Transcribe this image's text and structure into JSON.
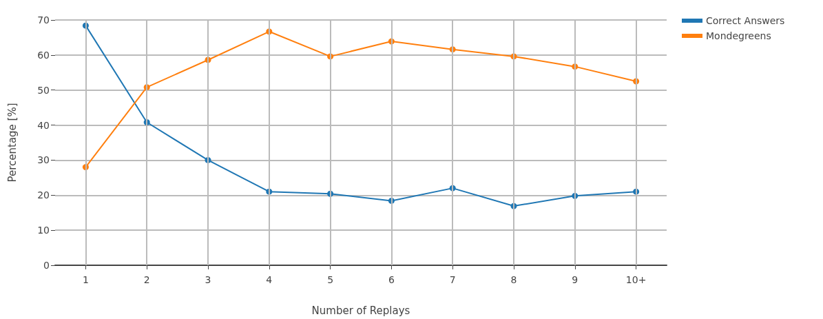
{
  "chart_data": {
    "type": "line",
    "xlabel": "Number of Replays",
    "ylabel": "Percentage [%]",
    "categories": [
      "1",
      "2",
      "3",
      "4",
      "5",
      "6",
      "7",
      "8",
      "9",
      "10+"
    ],
    "series": [
      {
        "name": "Correct Answers",
        "color": "#1f77b4",
        "values": [
          68.4,
          40.8,
          30,
          21,
          20.4,
          18.4,
          22,
          16.9,
          19.8,
          21
        ]
      },
      {
        "name": "Mondegreens",
        "color": "#ff7f0e",
        "values": [
          28,
          50.8,
          58.6,
          66.7,
          59.6,
          63.9,
          61.6,
          59.6,
          56.7,
          52.5
        ]
      }
    ],
    "ylim": [
      0,
      70
    ],
    "yticks": [
      0,
      10,
      20,
      30,
      40,
      50,
      60,
      70
    ],
    "grid": true,
    "legend": "top right",
    "marker": "circle",
    "line_style": "solid"
  }
}
